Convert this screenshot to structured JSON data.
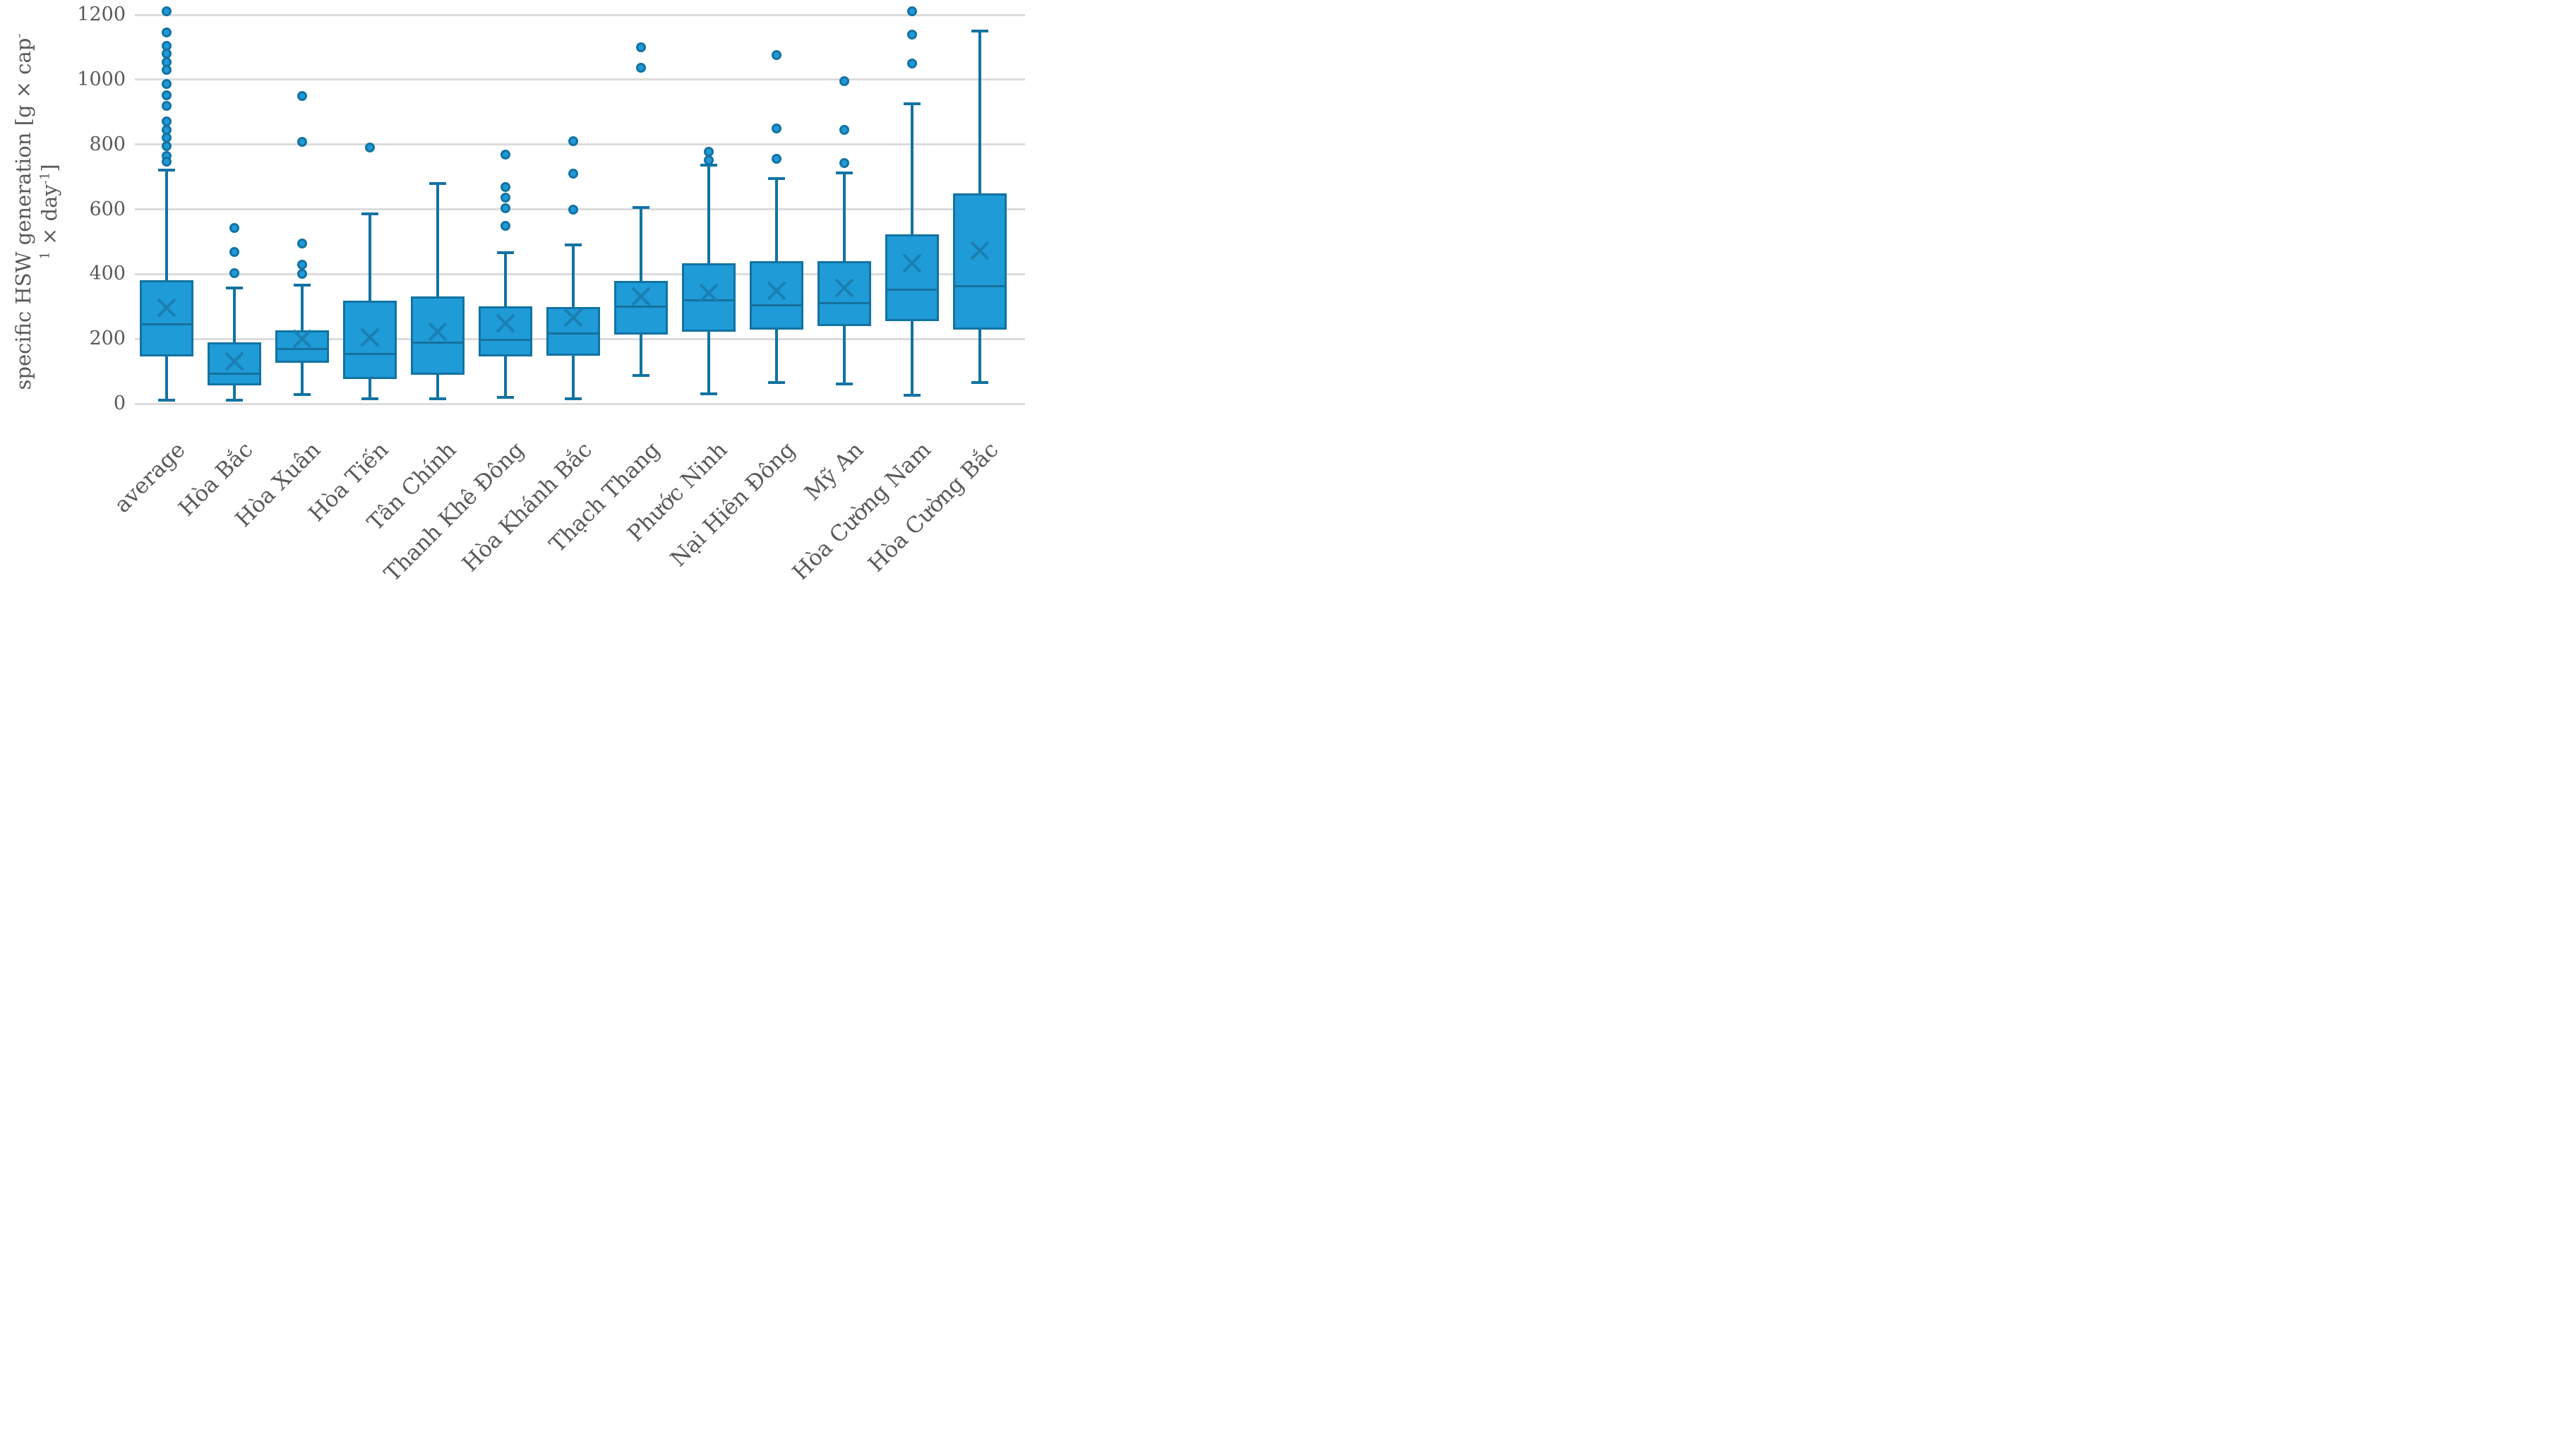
{
  "figure": {
    "background": "#ffffff",
    "text_color": "#595959",
    "box_fill": "#1F9BD7",
    "box_stroke": "#1273A2",
    "mean_marker_color": "#1A7FB2",
    "gridline_color": "#dcdcdc"
  },
  "y_axis": {
    "title_line1_main": "specific HSW generation [g × cap",
    "title_line1_sup": "-",
    "title_line2_sup1": "1",
    "title_line2_main": " × day",
    "title_line2_sup2": "-1",
    "title_line2_close": "]",
    "ticks": [
      0,
      200,
      400,
      600,
      800,
      1000,
      1200
    ]
  },
  "chart_data": {
    "type": "box",
    "title": "",
    "xlabel": "",
    "ylabel": "specific HSW generation [g × cap-1 × day-1]",
    "ylim": [
      0,
      1200
    ],
    "y_tick_interval": 200,
    "grid": "horizontal-only",
    "legend": "none",
    "marker_semantics": {
      "x_marker": "mean",
      "line_in_box": "median",
      "dots": "outliers"
    },
    "series": [
      {
        "name": "average",
        "whisker_low": 10,
        "q1": 146,
        "median": 245,
        "mean": 296,
        "q3": 382,
        "whisker_high": 720,
        "outliers": [
          1210,
          1145,
          1105,
          1080,
          1055,
          1030,
          987,
          952,
          920,
          872,
          845,
          820,
          795,
          765,
          748
        ]
      },
      {
        "name": "Hòa Bắc",
        "whisker_low": 10,
        "q1": 57,
        "median": 92,
        "mean": 130,
        "q3": 190,
        "whisker_high": 358,
        "outliers": [
          542,
          468,
          402
        ]
      },
      {
        "name": "Hòa Xuân",
        "whisker_low": 28,
        "q1": 127,
        "median": 168,
        "mean": 201,
        "q3": 227,
        "whisker_high": 365,
        "outliers": [
          950,
          808,
          495,
          428,
          400
        ]
      },
      {
        "name": "Hòa Tiến",
        "whisker_low": 15,
        "q1": 76,
        "median": 153,
        "mean": 205,
        "q3": 318,
        "whisker_high": 585,
        "outliers": [
          790
        ]
      },
      {
        "name": "Tân Chính",
        "whisker_low": 16,
        "q1": 90,
        "median": 189,
        "mean": 223,
        "q3": 331,
        "whisker_high": 680,
        "outliers": []
      },
      {
        "name": "Thanh Khê Đông",
        "whisker_low": 19,
        "q1": 146,
        "median": 197,
        "mean": 249,
        "q3": 300,
        "whisker_high": 465,
        "outliers": [
          768,
          668,
          637,
          603,
          548
        ]
      },
      {
        "name": "Hòa Khánh Bắc",
        "whisker_low": 15,
        "q1": 147,
        "median": 216,
        "mean": 265,
        "q3": 298,
        "whisker_high": 490,
        "outliers": [
          810,
          710,
          598
        ]
      },
      {
        "name": "Thạch Thang",
        "whisker_low": 87,
        "q1": 214,
        "median": 300,
        "mean": 330,
        "q3": 378,
        "whisker_high": 605,
        "outliers": [
          1100,
          1037
        ]
      },
      {
        "name": "Phước Ninh",
        "whisker_low": 30,
        "q1": 222,
        "median": 319,
        "mean": 343,
        "q3": 433,
        "whisker_high": 737,
        "outliers": [
          778,
          752
        ]
      },
      {
        "name": "Nại Hiên Đông",
        "whisker_low": 65,
        "q1": 229,
        "median": 303,
        "mean": 348,
        "q3": 440,
        "whisker_high": 695,
        "outliers": [
          1075,
          850,
          755
        ]
      },
      {
        "name": "Mỹ An",
        "whisker_low": 60,
        "q1": 240,
        "median": 310,
        "mean": 357,
        "q3": 440,
        "whisker_high": 713,
        "outliers": [
          995,
          845,
          742
        ]
      },
      {
        "name": "Hòa Cường Nam",
        "whisker_low": 27,
        "q1": 254,
        "median": 352,
        "mean": 433,
        "q3": 522,
        "whisker_high": 925,
        "outliers": [
          1210,
          1140,
          1050
        ]
      },
      {
        "name": "Hòa Cường Bắc",
        "whisker_low": 65,
        "q1": 228,
        "median": 363,
        "mean": 473,
        "q3": 650,
        "whisker_high": 1150,
        "outliers": []
      }
    ]
  }
}
